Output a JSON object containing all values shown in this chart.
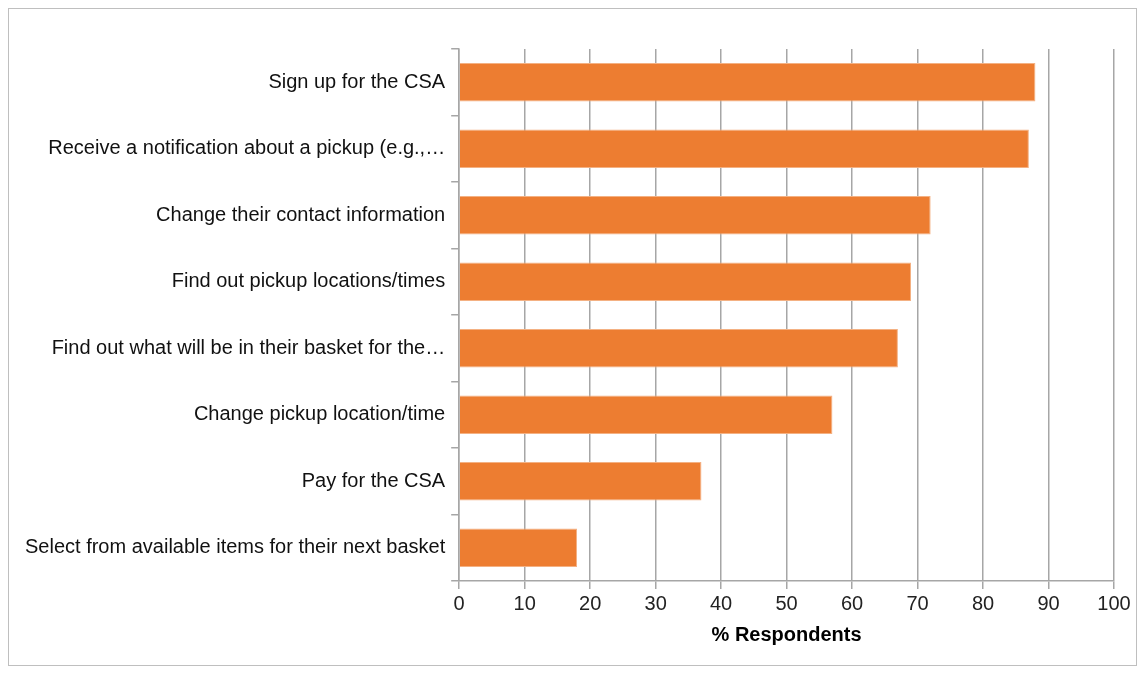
{
  "chart_data": {
    "type": "bar",
    "orientation": "horizontal",
    "xlabel": "% Respondents",
    "categories": [
      "Sign up for the CSA",
      "Receive a notification about a pickup (e.g.,…",
      "Change their contact information",
      "Find out pickup locations/times",
      "Find out what will be in their basket for the…",
      "Change pickup location/time",
      "Pay for the CSA",
      "Select from available items for their next basket"
    ],
    "values": [
      88,
      87,
      72,
      69,
      67,
      57,
      37,
      18
    ],
    "color": "#ed7d31",
    "xlim": [
      0,
      100
    ],
    "xticks": [
      0,
      10,
      20,
      30,
      40,
      50,
      60,
      70,
      80,
      90,
      100
    ],
    "grid": "x"
  }
}
